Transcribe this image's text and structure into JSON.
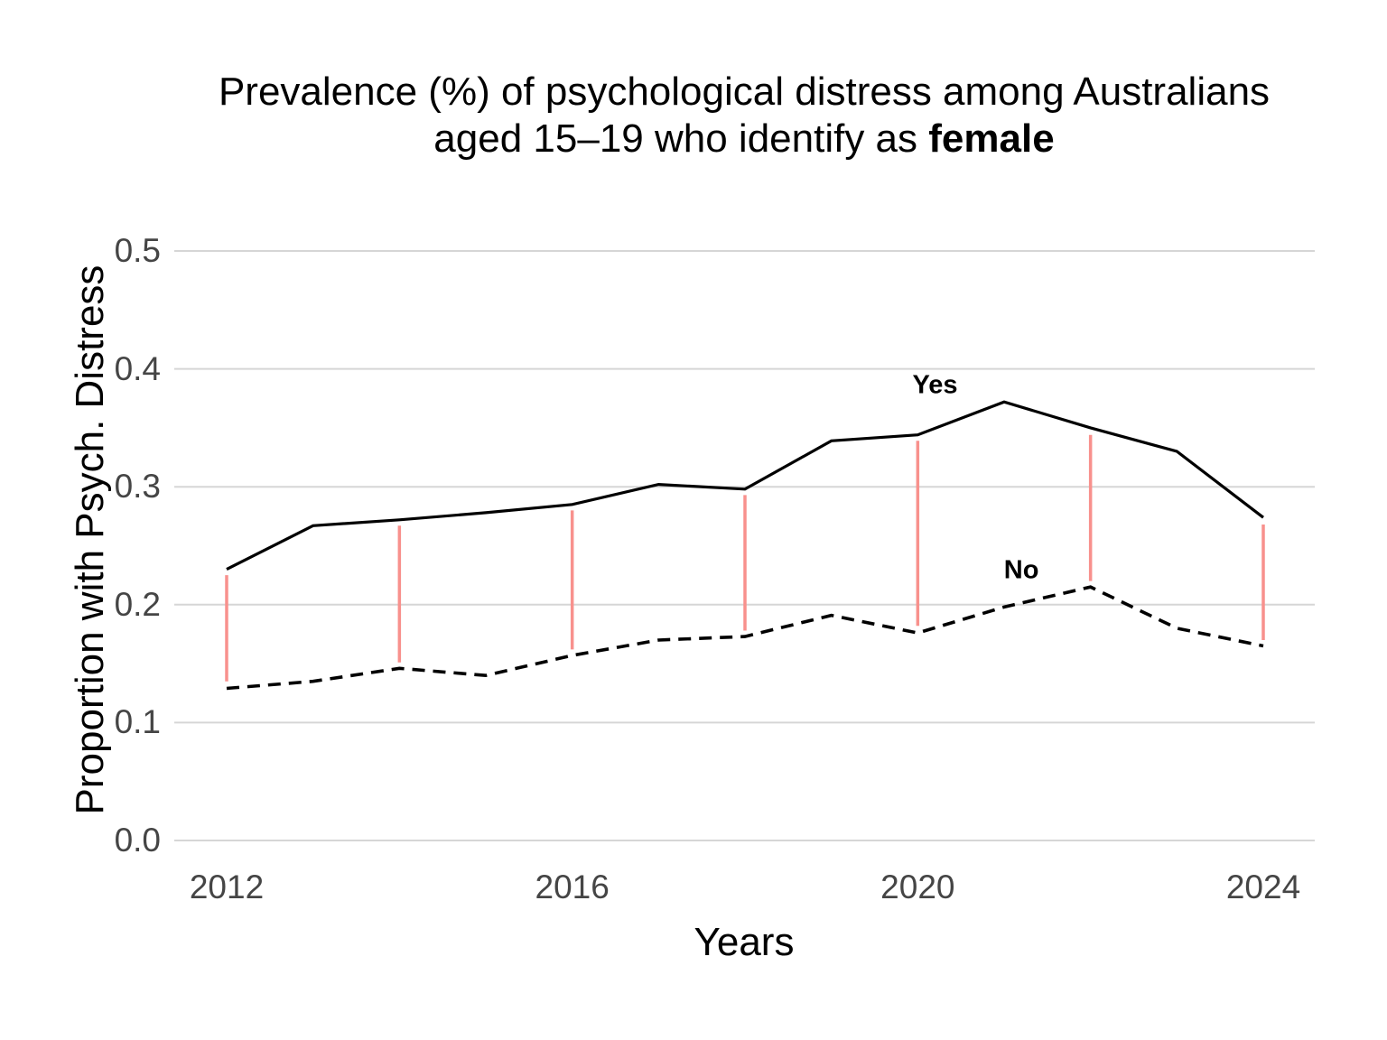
{
  "title": {
    "line1": "Prevalence (%) of psychological distress among Australians",
    "line2_prefix": "aged 15–19 who identify as ",
    "line2_bold": "female"
  },
  "axes": {
    "x_label": "Years",
    "y_label": "Proportion with Psych. Distress",
    "x_tick_labels": [
      "2012",
      "2016",
      "2020",
      "2024"
    ],
    "y_tick_labels": [
      "0.0",
      "0.1",
      "0.2",
      "0.3",
      "0.4",
      "0.5"
    ]
  },
  "annotations": {
    "yes_label": "Yes",
    "no_label": "No"
  },
  "colors": {
    "background": "#ffffff",
    "line_yes": "#000000",
    "line_no": "#000000",
    "connector": "#F8918D",
    "gridline": "#D6D6D6",
    "tick_text": "#454545",
    "title_text": "#000000"
  },
  "chart_data": {
    "type": "line",
    "x": [
      2012,
      2013,
      2014,
      2015,
      2016,
      2017,
      2018,
      2019,
      2020,
      2021,
      2022,
      2023,
      2024
    ],
    "series": [
      {
        "name": "Yes",
        "style": "solid",
        "values": [
          0.23,
          0.267,
          0.272,
          0.278,
          0.285,
          0.302,
          0.298,
          0.339,
          0.344,
          0.372,
          0.35,
          0.33,
          0.274
        ]
      },
      {
        "name": "No",
        "style": "dashed",
        "values": [
          0.129,
          0.135,
          0.146,
          0.14,
          0.157,
          0.17,
          0.173,
          0.191,
          0.176,
          0.198,
          0.215,
          0.18,
          0.165
        ]
      }
    ],
    "connectors": [
      {
        "year": 2012,
        "from": 0.135,
        "to": 0.225
      },
      {
        "year": 2014,
        "from": 0.151,
        "to": 0.267
      },
      {
        "year": 2016,
        "from": 0.162,
        "to": 0.28
      },
      {
        "year": 2018,
        "from": 0.178,
        "to": 0.293
      },
      {
        "year": 2020,
        "from": 0.182,
        "to": 0.339
      },
      {
        "year": 2022,
        "from": 0.22,
        "to": 0.344
      },
      {
        "year": 2024,
        "from": 0.17,
        "to": 0.268
      }
    ],
    "annotation_points": [
      {
        "label": "Yes",
        "x": 2020.2,
        "y": 0.386
      },
      {
        "label": "No",
        "x": 2021.2,
        "y": 0.229
      }
    ],
    "title": "Prevalence (%) of psychological distress among Australians aged 15–19 who identify as female",
    "xlabel": "Years",
    "ylabel": "Proportion with Psych. Distress",
    "xlim": [
      2011.4,
      2024.6
    ],
    "ylim": [
      0.0,
      0.5
    ],
    "x_ticks": [
      2012,
      2016,
      2020,
      2024
    ],
    "y_ticks": [
      0.0,
      0.1,
      0.2,
      0.3,
      0.4,
      0.5
    ],
    "grid": true,
    "legend": "none (inline series labels)"
  }
}
